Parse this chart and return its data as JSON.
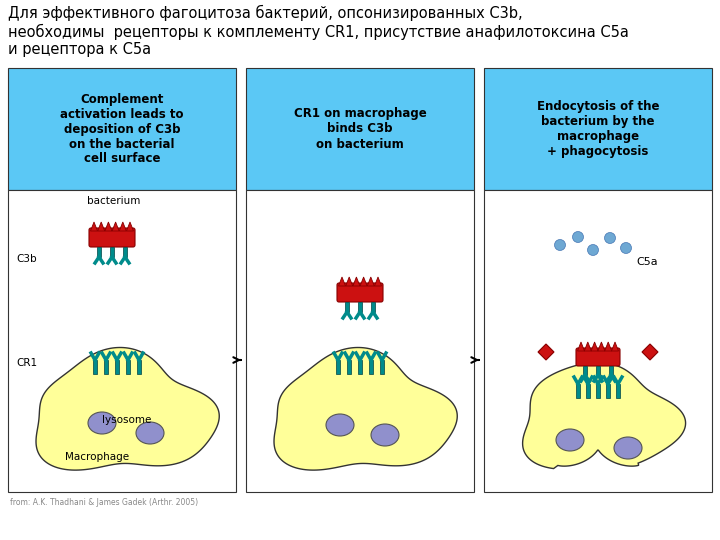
{
  "title_text": "Для эффективного фагоцитоза бактерий, опсонизированных C3b,\nнеобходимы  рецепторы к комплементу CR1, присутствие анафилотоксина C5а\nи рецептора к C5а",
  "title_fontsize": 10.5,
  "bg_color": "#ffffff",
  "panel_blue": "#5bc8f5",
  "panel_white": "#ffffff",
  "panel_yellow": "#ffff99",
  "teal_color": "#008b8b",
  "red_color": "#cc1111",
  "purple_color": "#9090cc",
  "blue_dot_color": "#5599cc",
  "panel1_header": "Complement\nactivation leads to\ndeposition of C3b\non the bacterial\ncell surface",
  "panel2_header": "CR1 on macrophage\nbinds C3b\non bacterium",
  "panel3_header": "Endocytosis of the\nbacterium by the\nmacrophage\n+ phagocytosis",
  "label_bacterium": "bacterium",
  "label_c3b": "C3b",
  "label_cr1": "CR1",
  "label_lysosome": "lysosome",
  "label_macrophage": "Macrophage",
  "label_c5a": "C5a",
  "caption": "from: A.K. Thadhani & James Gadek (Arthr. 2005)",
  "figure_width": 7.2,
  "figure_height": 5.4
}
